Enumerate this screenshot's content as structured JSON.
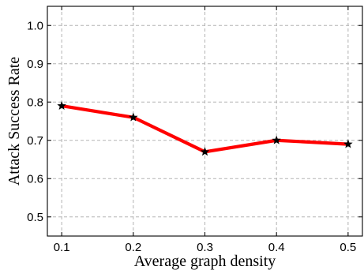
{
  "chart_data": {
    "type": "line",
    "title": "",
    "xlabel": "Average graph density",
    "ylabel": "Attack Success Rate",
    "x": [
      0.1,
      0.2,
      0.3,
      0.4,
      0.5
    ],
    "series": [
      {
        "values": [
          0.79,
          0.76,
          0.67,
          0.7,
          0.69
        ],
        "color": "#ff0000",
        "marker": "star",
        "marker_color": "#000000"
      }
    ],
    "xlim": [
      0.08,
      0.52
    ],
    "ylim": [
      0.45,
      1.05
    ],
    "xticks": [
      "0.1",
      "0.2",
      "0.3",
      "0.4",
      "0.5"
    ],
    "xtick_values": [
      0.1,
      0.2,
      0.3,
      0.4,
      0.5
    ],
    "yticks": [
      "0.5",
      "0.6",
      "0.7",
      "0.8",
      "0.9",
      "1.0"
    ],
    "ytick_values": [
      0.5,
      0.6,
      0.7,
      0.8,
      0.9,
      1.0
    ],
    "grid": true,
    "legend": "none"
  }
}
